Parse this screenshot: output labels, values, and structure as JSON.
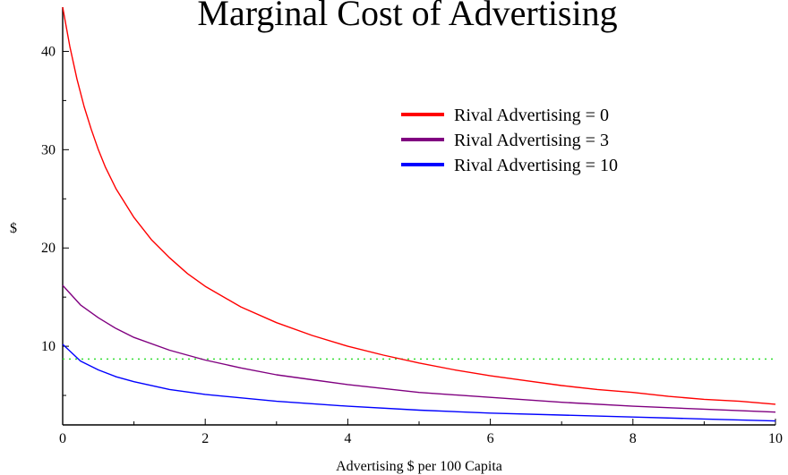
{
  "chart_data": {
    "type": "line",
    "title": "Marginal Cost of Advertising",
    "xlabel": "Advertising  $ per 100 Capita",
    "ylabel": "$",
    "xlim": [
      0,
      10
    ],
    "ylim": [
      2,
      44.5
    ],
    "x_ticks": [
      0,
      2,
      4,
      6,
      8,
      10
    ],
    "y_ticks": [
      10,
      20,
      30,
      40
    ],
    "grid": false,
    "legend_position": "upper-right",
    "reference_line": {
      "y": 8.7,
      "color": "#33dd33",
      "style": "dotted"
    },
    "series": [
      {
        "name": "Rival Advertising = 0",
        "color": "#ff0000",
        "x": [
          0,
          0.1,
          0.2,
          0.3,
          0.4,
          0.5,
          0.6,
          0.75,
          1,
          1.25,
          1.5,
          1.75,
          2,
          2.5,
          3,
          3.5,
          4,
          4.5,
          5,
          5.5,
          6,
          6.5,
          7,
          7.5,
          8,
          8.5,
          9,
          9.5,
          10
        ],
        "y": [
          44.5,
          40.5,
          37.2,
          34.4,
          32.1,
          30.0,
          28.2,
          26.0,
          23.1,
          20.8,
          19.0,
          17.4,
          16.1,
          14.0,
          12.4,
          11.1,
          10.0,
          9.1,
          8.3,
          7.6,
          7.0,
          6.5,
          6.0,
          5.6,
          5.3,
          4.9,
          4.6,
          4.4,
          4.1
        ]
      },
      {
        "name": "Rival Advertising = 3",
        "color": "#800080",
        "x": [
          0,
          0.25,
          0.5,
          0.75,
          1,
          1.5,
          2,
          2.5,
          3,
          3.5,
          4,
          5,
          6,
          7,
          8,
          9,
          10
        ],
        "y": [
          16.2,
          14.2,
          12.9,
          11.8,
          10.9,
          9.6,
          8.6,
          7.8,
          7.1,
          6.6,
          6.1,
          5.3,
          4.8,
          4.3,
          3.9,
          3.6,
          3.3
        ]
      },
      {
        "name": "Rival Advertising = 10",
        "color": "#0000ff",
        "x": [
          0,
          0.25,
          0.5,
          0.75,
          1,
          1.5,
          2,
          3,
          4,
          5,
          6,
          7,
          8,
          9,
          10
        ],
        "y": [
          10.2,
          8.5,
          7.6,
          6.9,
          6.4,
          5.6,
          5.1,
          4.4,
          3.9,
          3.5,
          3.2,
          3.0,
          2.8,
          2.6,
          2.4
        ]
      }
    ]
  }
}
